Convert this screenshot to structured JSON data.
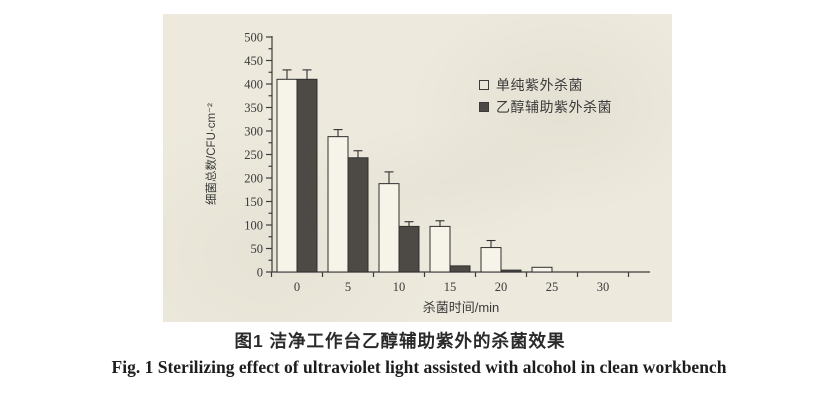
{
  "figure": {
    "caption_zh": "图1  洁净工作台乙醇辅助紫外的杀菌效果",
    "caption_en": "Fig. 1  Sterilizing effect of ultraviolet light assisted with alcohol in clean workbench"
  },
  "colors": {
    "paper": "#edeadd",
    "ink": "#3a3a3a",
    "bar_light": "#f6f3e9",
    "bar_dark": "#4d4a45"
  },
  "chart_data": {
    "type": "bar",
    "title": "",
    "xlabel": "杀菌时间/min",
    "ylabel": "细菌总数/CFU·cm⁻²",
    "categories": [
      0,
      5,
      10,
      15,
      20,
      25,
      30
    ],
    "ylim": [
      0,
      500
    ],
    "ytick_step": 50,
    "ytick_minor_step": 25,
    "grid": false,
    "legend_position": "upper right",
    "error_bars": "upper caps only",
    "series": [
      {
        "name": "单纯紫外杀菌",
        "fill": "#f6f3e9",
        "values": [
          410,
          288,
          188,
          97,
          52,
          10,
          0
        ],
        "errors": [
          20,
          15,
          25,
          12,
          15,
          0,
          0
        ]
      },
      {
        "name": "乙醇辅助紫外杀菌",
        "fill": "#4d4a45",
        "values": [
          410,
          243,
          97,
          13,
          4,
          0,
          0
        ],
        "errors": [
          20,
          15,
          10,
          0,
          0,
          0,
          0
        ]
      }
    ]
  }
}
